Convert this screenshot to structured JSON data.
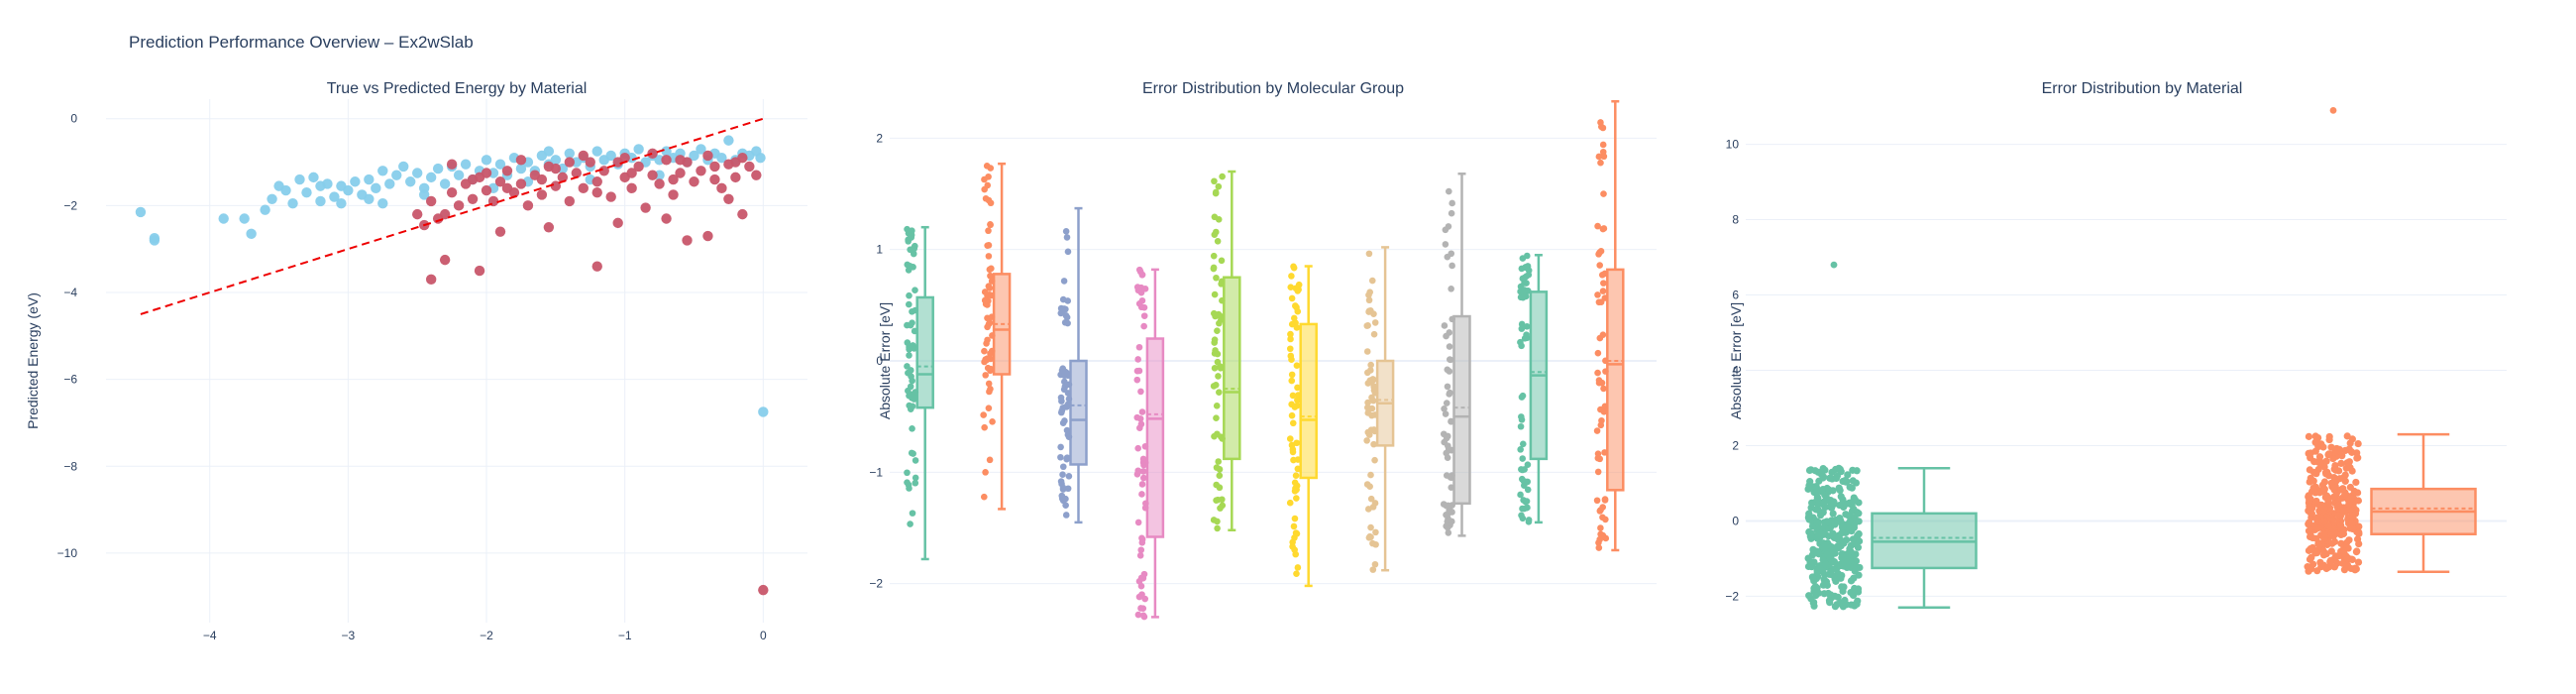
{
  "title": "Prediction Performance Overview – Ex2wSlab",
  "colors": {
    "background": "#ffffff",
    "grid": "#ebf0f8",
    "zeroline": "#ebf0f8",
    "text": "#2a3f5f",
    "series_a": "#87ceeb",
    "series_b": "#c8566a",
    "parity_line": "#ee0000"
  },
  "chart_data": [
    {
      "type": "scatter",
      "title": "True vs Predicted Energy by Material",
      "xlabel": "",
      "ylabel": "Predicted Energy (eV)",
      "xlim": [
        -4.75,
        0.32
      ],
      "ylim": [
        -11.6,
        0.45
      ],
      "xticks": [
        -4,
        -3,
        -2,
        -1,
        0
      ],
      "yticks": [
        0,
        -2,
        -4,
        -6,
        -8,
        -10
      ],
      "grid": true,
      "reference_line": {
        "style": "dashed",
        "color": "#ee0000",
        "x": [
          -4.5,
          0
        ],
        "y": [
          -4.5,
          0
        ]
      },
      "series": [
        {
          "color": "#87ceeb",
          "points": [
            [
              -4.5,
              -2.15
            ],
            [
              -4.4,
              -2.75
            ],
            [
              -4.4,
              -2.8
            ],
            [
              -3.9,
              -2.3
            ],
            [
              -3.75,
              -2.3
            ],
            [
              -3.7,
              -2.65
            ],
            [
              -3.6,
              -2.1
            ],
            [
              -3.55,
              -1.85
            ],
            [
              -3.5,
              -1.55
            ],
            [
              -3.45,
              -1.65
            ],
            [
              -3.4,
              -1.95
            ],
            [
              -3.35,
              -1.4
            ],
            [
              -3.3,
              -1.7
            ],
            [
              -3.25,
              -1.35
            ],
            [
              -3.2,
              -1.9
            ],
            [
              -3.15,
              -1.5
            ],
            [
              -3.1,
              -1.8
            ],
            [
              -3.05,
              -1.55
            ],
            [
              -3.0,
              -1.65
            ],
            [
              -2.95,
              -1.45
            ],
            [
              -2.9,
              -1.75
            ],
            [
              -2.85,
              -1.4
            ],
            [
              -2.8,
              -1.6
            ],
            [
              -2.75,
              -1.2
            ],
            [
              -2.7,
              -1.5
            ],
            [
              -2.65,
              -1.3
            ],
            [
              -2.6,
              -1.1
            ],
            [
              -2.55,
              -1.45
            ],
            [
              -2.5,
              -1.25
            ],
            [
              -2.45,
              -1.6
            ],
            [
              -2.4,
              -1.35
            ],
            [
              -2.35,
              -1.15
            ],
            [
              -2.3,
              -1.5
            ],
            [
              -2.25,
              -1.1
            ],
            [
              -2.2,
              -1.3
            ],
            [
              -2.15,
              -1.05
            ],
            [
              -2.1,
              -1.4
            ],
            [
              -2.05,
              -1.2
            ],
            [
              -2.0,
              -0.95
            ],
            [
              -1.95,
              -1.25
            ],
            [
              -1.9,
              -1.05
            ],
            [
              -1.85,
              -1.3
            ],
            [
              -1.8,
              -0.9
            ],
            [
              -1.75,
              -1.15
            ],
            [
              -1.7,
              -1.0
            ],
            [
              -1.65,
              -1.2
            ],
            [
              -1.6,
              -0.85
            ],
            [
              -1.55,
              -1.05
            ],
            [
              -1.5,
              -0.95
            ],
            [
              -1.45,
              -1.15
            ],
            [
              -1.4,
              -0.8
            ],
            [
              -1.35,
              -1.0
            ],
            [
              -1.3,
              -0.9
            ],
            [
              -1.25,
              -1.1
            ],
            [
              -1.2,
              -0.75
            ],
            [
              -1.15,
              -0.95
            ],
            [
              -1.1,
              -0.85
            ],
            [
              -1.05,
              -1.05
            ],
            [
              -1.0,
              -0.8
            ],
            [
              -0.95,
              -0.9
            ],
            [
              -0.9,
              -0.7
            ],
            [
              -0.85,
              -1.0
            ],
            [
              -0.8,
              -0.85
            ],
            [
              -0.75,
              -0.95
            ],
            [
              -0.7,
              -0.75
            ],
            [
              -0.65,
              -0.9
            ],
            [
              -0.6,
              -0.8
            ],
            [
              -0.55,
              -1.0
            ],
            [
              -0.5,
              -0.85
            ],
            [
              -0.45,
              -0.7
            ],
            [
              -0.4,
              -0.95
            ],
            [
              -0.35,
              -0.8
            ],
            [
              -0.3,
              -0.9
            ],
            [
              -0.25,
              -0.5
            ],
            [
              -0.2,
              -0.95
            ],
            [
              -0.15,
              -0.8
            ],
            [
              -0.1,
              -0.85
            ],
            [
              -0.05,
              -0.75
            ],
            [
              -0.02,
              -0.9
            ],
            [
              0.0,
              -6.75
            ],
            [
              -3.05,
              -1.95
            ],
            [
              -2.85,
              -1.85
            ],
            [
              -2.45,
              -1.75
            ],
            [
              -1.95,
              -1.6
            ],
            [
              -1.7,
              -1.45
            ],
            [
              -1.25,
              -1.4
            ],
            [
              -0.75,
              -1.3
            ],
            [
              -2.75,
              -1.95
            ],
            [
              -3.2,
              -1.55
            ],
            [
              -1.55,
              -0.75
            ]
          ]
        },
        {
          "color": "#c8566a",
          "points": [
            [
              -2.4,
              -3.7
            ],
            [
              -2.3,
              -3.25
            ],
            [
              -2.05,
              -3.5
            ],
            [
              -1.2,
              -3.4
            ],
            [
              -2.45,
              -2.45
            ],
            [
              -2.5,
              -2.2
            ],
            [
              -2.35,
              -2.3
            ],
            [
              -2.25,
              -1.7
            ],
            [
              -2.2,
              -2.0
            ],
            [
              -2.15,
              -1.5
            ],
            [
              -2.1,
              -1.85
            ],
            [
              -2.05,
              -1.35
            ],
            [
              -2.0,
              -1.65
            ],
            [
              -1.95,
              -1.9
            ],
            [
              -1.9,
              -1.45
            ],
            [
              -1.85,
              -1.2
            ],
            [
              -1.8,
              -1.7
            ],
            [
              -1.75,
              -1.5
            ],
            [
              -1.7,
              -2.0
            ],
            [
              -1.65,
              -1.3
            ],
            [
              -1.6,
              -1.75
            ],
            [
              -1.55,
              -1.1
            ],
            [
              -1.5,
              -1.55
            ],
            [
              -1.45,
              -1.35
            ],
            [
              -1.4,
              -1.9
            ],
            [
              -1.35,
              -1.25
            ],
            [
              -1.3,
              -1.6
            ],
            [
              -1.25,
              -1.0
            ],
            [
              -1.2,
              -1.45
            ],
            [
              -1.15,
              -1.2
            ],
            [
              -1.1,
              -1.8
            ],
            [
              -1.05,
              -1.0
            ],
            [
              -1.0,
              -1.35
            ],
            [
              -0.95,
              -1.6
            ],
            [
              -0.9,
              -1.1
            ],
            [
              -0.85,
              -2.05
            ],
            [
              -0.8,
              -1.3
            ],
            [
              -0.75,
              -1.5
            ],
            [
              -0.7,
              -0.95
            ],
            [
              -0.65,
              -1.75
            ],
            [
              -0.6,
              -1.25
            ],
            [
              -0.55,
              -1.0
            ],
            [
              -0.5,
              -1.45
            ],
            [
              -0.45,
              -1.2
            ],
            [
              -0.4,
              -2.7
            ],
            [
              -0.35,
              -1.1
            ],
            [
              -0.3,
              -1.6
            ],
            [
              -0.25,
              -1.05
            ],
            [
              -0.2,
              -1.35
            ],
            [
              -0.15,
              -2.2
            ],
            [
              -0.1,
              -1.1
            ],
            [
              -0.05,
              -1.3
            ],
            [
              0.0,
              -10.85
            ],
            [
              -0.55,
              -2.8
            ],
            [
              -0.7,
              -2.3
            ],
            [
              -1.05,
              -2.4
            ],
            [
              -1.55,
              -2.5
            ],
            [
              -1.9,
              -2.6
            ],
            [
              -2.3,
              -2.2
            ],
            [
              -0.25,
              -1.85
            ],
            [
              -2.25,
              -1.05
            ],
            [
              -2.0,
              -1.25
            ],
            [
              -1.75,
              -0.95
            ],
            [
              -1.5,
              -1.15
            ],
            [
              -1.3,
              -0.85
            ],
            [
              -1.0,
              -0.9
            ],
            [
              -0.8,
              -0.8
            ],
            [
              -0.6,
              -0.95
            ],
            [
              -0.4,
              -0.85
            ],
            [
              -0.2,
              -1.0
            ],
            [
              -0.15,
              -0.9
            ],
            [
              -0.35,
              -1.4
            ],
            [
              -0.65,
              -1.4
            ],
            [
              -0.95,
              -1.25
            ],
            [
              -1.2,
              -1.7
            ],
            [
              -1.6,
              -1.4
            ],
            [
              -1.85,
              -1.6
            ],
            [
              -2.1,
              -1.4
            ],
            [
              -2.4,
              -1.9
            ],
            [
              -1.4,
              -1.0
            ]
          ]
        }
      ]
    },
    {
      "type": "box",
      "title": "Error Distribution by Molecular Group",
      "xlabel": "",
      "ylabel": "Absolute Error [eV]",
      "ylim": [
        -2.35,
        2.35
      ],
      "yticks": [
        2,
        1,
        0,
        -1,
        -2
      ],
      "grid": true,
      "boxes": [
        {
          "color": "#66c2a5",
          "min": -1.78,
          "q1": -0.42,
          "median": -0.12,
          "mean": -0.05,
          "q3": 0.57,
          "max": 1.2
        },
        {
          "color": "#fc8d62",
          "min": -1.33,
          "q1": -0.12,
          "median": 0.28,
          "mean": 0.33,
          "q3": 0.78,
          "max": 1.77
        },
        {
          "color": "#8da0cb",
          "min": -1.45,
          "q1": -0.93,
          "median": -0.53,
          "mean": -0.4,
          "q3": 0.0,
          "max": 1.37
        },
        {
          "color": "#e78ac3",
          "min": -2.3,
          "q1": -1.58,
          "median": -0.52,
          "mean": -0.48,
          "q3": 0.2,
          "max": 0.82
        },
        {
          "color": "#a6d854",
          "min": -1.52,
          "q1": -0.88,
          "median": -0.28,
          "mean": -0.25,
          "q3": 0.75,
          "max": 1.7
        },
        {
          "color": "#ffd92f",
          "min": -2.02,
          "q1": -1.05,
          "median": -0.53,
          "mean": -0.5,
          "q3": 0.33,
          "max": 0.85
        },
        {
          "color": "#e5c494",
          "min": -1.88,
          "q1": -0.76,
          "median": -0.38,
          "mean": -0.35,
          "q3": 0.0,
          "max": 1.02
        },
        {
          "color": "#b3b3b3",
          "min": -1.57,
          "q1": -1.28,
          "median": -0.5,
          "mean": -0.42,
          "q3": 0.4,
          "max": 1.68
        },
        {
          "color": "#66c2a5",
          "min": -1.45,
          "q1": -0.88,
          "median": -0.13,
          "mean": -0.1,
          "q3": 0.62,
          "max": 0.95
        },
        {
          "color": "#fc8d62",
          "min": -1.7,
          "q1": -1.16,
          "median": -0.03,
          "mean": 0.0,
          "q3": 0.82,
          "max": 2.33
        }
      ]
    },
    {
      "type": "box",
      "title": "Error Distribution by Material",
      "xlabel": "",
      "ylabel": "Absolute Error [eV]",
      "ylim": [
        -2.7,
        11.2
      ],
      "yticks": [
        10,
        8,
        6,
        4,
        2,
        0,
        -2
      ],
      "grid": true,
      "boxes": [
        {
          "color": "#66c2a5",
          "min": -2.3,
          "q1": -1.25,
          "median": -0.55,
          "mean": -0.45,
          "q3": 0.2,
          "max": 1.4,
          "outliers": [
            6.8
          ]
        },
        {
          "color": "#fc8d62",
          "min": -1.35,
          "q1": -0.35,
          "median": 0.25,
          "mean": 0.33,
          "q3": 0.85,
          "max": 2.3,
          "outliers": [
            10.9
          ]
        }
      ]
    }
  ]
}
